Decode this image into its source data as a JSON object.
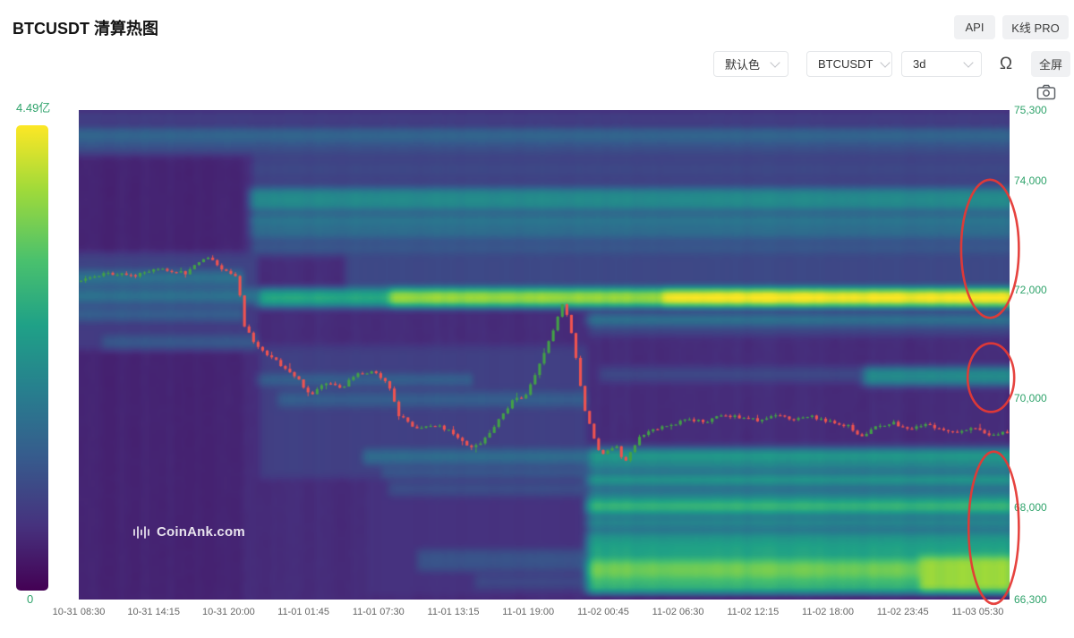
{
  "header": {
    "title": "BTCUSDT 清算热图",
    "api_button": "API",
    "kline_pro_button": "K线 PRO"
  },
  "controls": {
    "color_select": "默认色",
    "symbol_select": "BTCUSDT",
    "period_select": "3d",
    "fullscreen_button": "全屏"
  },
  "icons": {
    "headset_glyph": "Ω"
  },
  "watermark": {
    "text": "CoinAnk.com"
  },
  "colorbar": {
    "max_label": "4.49亿",
    "min_label": "0"
  },
  "colors": {
    "axis_label_green": "#2fa36b",
    "time_label": "#666666",
    "candle_up": "#43a047",
    "candle_down": "#ef5350",
    "annotation_red": "#e53935",
    "button_bg": "#f0f1f3",
    "border": "#e4e6e9"
  },
  "chart_data": {
    "type": "heatmap",
    "title": "BTCUSDT 清算热图",
    "symbol": "BTCUSDT",
    "period": "3d",
    "legend_position": "left-colorbar",
    "grid": false,
    "colorbar": {
      "min": 0,
      "max": 449000000,
      "max_label": "4.49亿",
      "min_label": "0"
    },
    "y_axis": {
      "min": 66300,
      "max": 75300,
      "ticks": [
        {
          "value": 75300,
          "label": "75,300"
        },
        {
          "value": 74000,
          "label": "74,000"
        },
        {
          "value": 72000,
          "label": "72,000"
        },
        {
          "value": 70000,
          "label": "70,000"
        },
        {
          "value": 68000,
          "label": "68,000"
        },
        {
          "value": 66300,
          "label": "66,300"
        }
      ]
    },
    "x_axis": {
      "ticks": [
        "10-31 08:30",
        "10-31 14:15",
        "10-31 20:00",
        "11-01 01:45",
        "11-01 07:30",
        "11-01 13:15",
        "11-01 19:00",
        "11-02 00:45",
        "11-02 06:30",
        "11-02 12:15",
        "11-02 18:00",
        "11-02 23:45",
        "11-03 05:30"
      ]
    },
    "candle_count": 205,
    "price_waypoints": [
      [
        0,
        72150
      ],
      [
        0.031,
        72300
      ],
      [
        0.06,
        72250
      ],
      [
        0.088,
        72380
      ],
      [
        0.117,
        72300
      ],
      [
        0.141,
        72620
      ],
      [
        0.156,
        72380
      ],
      [
        0.173,
        72250
      ],
      [
        0.18,
        71350
      ],
      [
        0.194,
        70950
      ],
      [
        0.213,
        70700
      ],
      [
        0.233,
        70450
      ],
      [
        0.252,
        70050
      ],
      [
        0.266,
        70300
      ],
      [
        0.286,
        70200
      ],
      [
        0.3,
        70450
      ],
      [
        0.319,
        70500
      ],
      [
        0.334,
        70300
      ],
      [
        0.346,
        69700
      ],
      [
        0.367,
        69420
      ],
      [
        0.387,
        69520
      ],
      [
        0.406,
        69350
      ],
      [
        0.425,
        69080
      ],
      [
        0.439,
        69250
      ],
      [
        0.454,
        69600
      ],
      [
        0.468,
        69950
      ],
      [
        0.483,
        70050
      ],
      [
        0.497,
        70600
      ],
      [
        0.512,
        71250
      ],
      [
        0.522,
        71750
      ],
      [
        0.53,
        71350
      ],
      [
        0.538,
        70600
      ],
      [
        0.545,
        69850
      ],
      [
        0.555,
        69300
      ],
      [
        0.564,
        68950
      ],
      [
        0.579,
        69150
      ],
      [
        0.588,
        68800
      ],
      [
        0.603,
        69250
      ],
      [
        0.617,
        69420
      ],
      [
        0.637,
        69500
      ],
      [
        0.656,
        69620
      ],
      [
        0.675,
        69560
      ],
      [
        0.694,
        69700
      ],
      [
        0.713,
        69640
      ],
      [
        0.733,
        69600
      ],
      [
        0.752,
        69700
      ],
      [
        0.771,
        69620
      ],
      [
        0.79,
        69660
      ],
      [
        0.81,
        69560
      ],
      [
        0.829,
        69500
      ],
      [
        0.843,
        69300
      ],
      [
        0.858,
        69460
      ],
      [
        0.877,
        69560
      ],
      [
        0.891,
        69420
      ],
      [
        0.906,
        69520
      ],
      [
        0.925,
        69460
      ],
      [
        0.944,
        69380
      ],
      [
        0.963,
        69460
      ],
      [
        0.983,
        69320
      ],
      [
        1,
        69380
      ]
    ],
    "heat_bands": [
      [
        75300,
        74500,
        0.0,
        1.0,
        0.15
      ],
      [
        74500,
        72650,
        0.18,
        1.0,
        0.2
      ],
      [
        72650,
        72050,
        0.28,
        1.0,
        0.22
      ],
      [
        72650,
        71900,
        0.0,
        0.19,
        0.2
      ],
      [
        71900,
        70900,
        0.0,
        0.19,
        0.17
      ],
      [
        70900,
        68550,
        0.19,
        0.545,
        0.19
      ],
      [
        69100,
        66350,
        0.545,
        1.0,
        0.25
      ],
      [
        68550,
        66350,
        0.3,
        0.545,
        0.14
      ],
      [
        75240,
        75140,
        0.0,
        1.0,
        0.2
      ],
      [
        74940,
        74760,
        0.0,
        1.0,
        0.33
      ],
      [
        74700,
        74580,
        0.0,
        1.0,
        0.25
      ],
      [
        74300,
        74170,
        0.18,
        1.0,
        0.22
      ],
      [
        73820,
        73520,
        0.18,
        1.0,
        0.48
      ],
      [
        73380,
        73230,
        0.18,
        1.0,
        0.4
      ],
      [
        73150,
        73000,
        0.18,
        1.0,
        0.36
      ],
      [
        72880,
        72740,
        0.18,
        1.0,
        0.28
      ],
      [
        72000,
        71700,
        0.19,
        1.0,
        0.6
      ],
      [
        71990,
        71710,
        0.33,
        1.0,
        0.85
      ],
      [
        71980,
        71720,
        0.62,
        1.0,
        1.0
      ],
      [
        71540,
        71370,
        0.545,
        1.0,
        0.4
      ],
      [
        71300,
        71180,
        0.545,
        1.0,
        0.22
      ],
      [
        72350,
        72150,
        0.0,
        0.175,
        0.38
      ],
      [
        71970,
        71790,
        0.0,
        0.27,
        0.38
      ],
      [
        71640,
        71430,
        0.0,
        0.175,
        0.3
      ],
      [
        71100,
        70900,
        0.02,
        0.19,
        0.28
      ],
      [
        70420,
        70260,
        0.19,
        0.42,
        0.32
      ],
      [
        70100,
        69900,
        0.21,
        0.545,
        0.3
      ],
      [
        69000,
        68800,
        0.3,
        0.545,
        0.36
      ],
      [
        68700,
        68550,
        0.32,
        0.545,
        0.28
      ],
      [
        68420,
        68200,
        0.33,
        0.545,
        0.24
      ],
      [
        67150,
        66800,
        0.36,
        0.545,
        0.26
      ],
      [
        66700,
        66500,
        0.42,
        0.545,
        0.22
      ],
      [
        70550,
        70280,
        0.84,
        1.0,
        0.48
      ],
      [
        70520,
        70330,
        0.555,
        0.84,
        0.22
      ],
      [
        69040,
        68910,
        0.545,
        1.0,
        0.55
      ],
      [
        68800,
        68660,
        0.545,
        1.0,
        0.46
      ],
      [
        68560,
        68420,
        0.545,
        1.0,
        0.55
      ],
      [
        68300,
        68170,
        0.545,
        1.0,
        0.42
      ],
      [
        68060,
        67860,
        0.545,
        1.0,
        0.66
      ],
      [
        67760,
        67620,
        0.545,
        1.0,
        0.48
      ],
      [
        67520,
        67380,
        0.545,
        1.0,
        0.52
      ],
      [
        67260,
        67060,
        0.545,
        1.0,
        0.58
      ],
      [
        66980,
        66720,
        0.545,
        1.0,
        0.78
      ],
      [
        66660,
        66460,
        0.545,
        1.0,
        0.66
      ],
      [
        67050,
        66450,
        0.9,
        1.0,
        0.85
      ]
    ],
    "annotations": {
      "ellipses": [
        {
          "t": 0.979,
          "price": 72750,
          "rx_t": 0.031,
          "ry_price": 1270
        },
        {
          "t": 0.98,
          "price": 70380,
          "rx_t": 0.025,
          "ry_price": 630
        },
        {
          "t": 0.983,
          "price": 67620,
          "rx_t": 0.027,
          "ry_price": 1400
        }
      ]
    }
  }
}
